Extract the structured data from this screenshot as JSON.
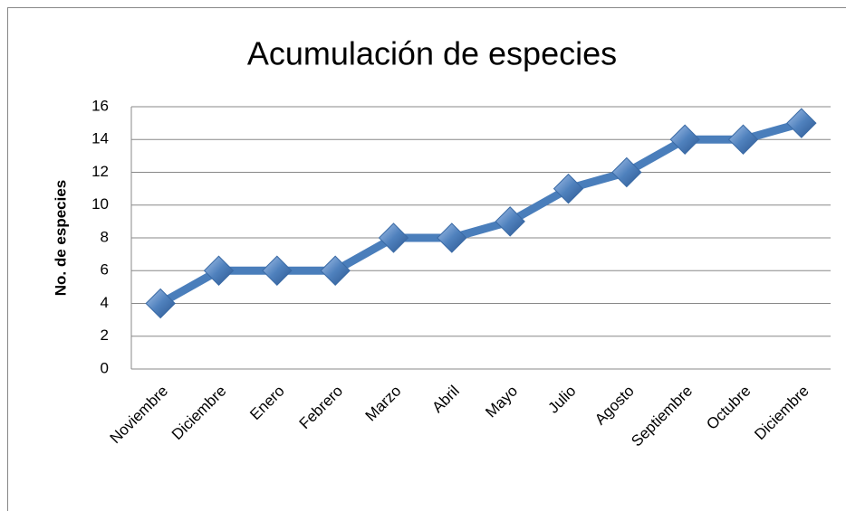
{
  "chart_data": {
    "type": "line",
    "title": "Acumulación de especies",
    "ylabel": "No. de especies",
    "categories": [
      "Noviembre",
      "Diciembre",
      "Enero",
      "Febrero",
      "Marzo",
      "Abril",
      "Mayo",
      "Julio",
      "Agosto",
      "Septiembre",
      "Octubre",
      "Diciembre"
    ],
    "values": [
      4,
      6,
      6,
      6,
      8,
      8,
      9,
      11,
      12,
      14,
      14,
      15
    ],
    "color": "#4a7ebb",
    "ylim": [
      0,
      16
    ],
    "yticks": [
      0,
      2,
      4,
      6,
      8,
      10,
      12,
      14,
      16
    ],
    "grid": true
  }
}
